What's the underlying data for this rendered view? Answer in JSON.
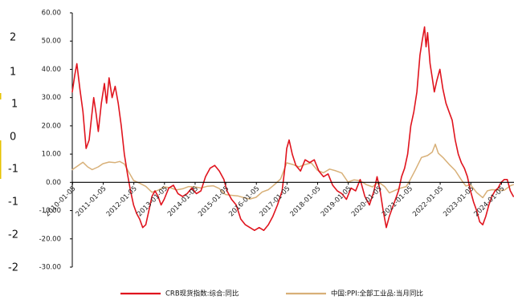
{
  "chart_data": {
    "type": "line",
    "title": "",
    "xlabel": "",
    "ylabel": "",
    "ylim": [
      -30,
      60
    ],
    "yticks": [
      "60.00",
      "50.00",
      "40.00",
      "30.00",
      "20.00",
      "10.00",
      "0.00",
      "-10.00",
      "-20.00",
      "-30.00"
    ],
    "xticks": [
      "2010-01-05",
      "2011-01-05",
      "2012-01-05",
      "2013-01-05",
      "2014-01-05",
      "2015-01-05",
      "2016-01-05",
      "2017-01-05",
      "2018-01-05",
      "2019-01-05",
      "2020-01-05",
      "2021-01-05",
      "2022-01-05",
      "2023-01-05",
      "2024-01-05"
    ],
    "secondary_axis_fragment": [
      "2",
      "1",
      "1",
      "0",
      "-1",
      "-1",
      "-2",
      "-2"
    ],
    "legend_position": "bottom",
    "series": [
      {
        "name": "CRB现货指数:综合:同比",
        "color": "#e0141e",
        "points": [
          [
            2010.0,
            32
          ],
          [
            2010.08,
            38
          ],
          [
            2010.15,
            42
          ],
          [
            2010.25,
            33
          ],
          [
            2010.35,
            25
          ],
          [
            2010.45,
            12
          ],
          [
            2010.55,
            15
          ],
          [
            2010.62,
            22
          ],
          [
            2010.7,
            30
          ],
          [
            2010.78,
            24
          ],
          [
            2010.85,
            18
          ],
          [
            2010.95,
            28
          ],
          [
            2011.05,
            35
          ],
          [
            2011.12,
            28
          ],
          [
            2011.2,
            37
          ],
          [
            2011.3,
            30
          ],
          [
            2011.4,
            34
          ],
          [
            2011.5,
            28
          ],
          [
            2011.6,
            20
          ],
          [
            2011.7,
            10
          ],
          [
            2011.8,
            3
          ],
          [
            2011.9,
            -3
          ],
          [
            2012.0,
            -8
          ],
          [
            2012.1,
            -11
          ],
          [
            2012.2,
            -13
          ],
          [
            2012.3,
            -16
          ],
          [
            2012.4,
            -15
          ],
          [
            2012.5,
            -10
          ],
          [
            2012.6,
            -5
          ],
          [
            2012.7,
            -3
          ],
          [
            2012.8,
            -5
          ],
          [
            2012.9,
            -8
          ],
          [
            2013.0,
            -6
          ],
          [
            2013.15,
            -2
          ],
          [
            2013.3,
            -1
          ],
          [
            2013.45,
            -4
          ],
          [
            2013.6,
            -5
          ],
          [
            2013.75,
            -4
          ],
          [
            2013.9,
            -2
          ],
          [
            2014.05,
            -4
          ],
          [
            2014.2,
            -3
          ],
          [
            2014.35,
            2
          ],
          [
            2014.5,
            5
          ],
          [
            2014.65,
            6
          ],
          [
            2014.8,
            4
          ],
          [
            2014.95,
            1
          ],
          [
            2015.05,
            -3
          ],
          [
            2015.2,
            -6
          ],
          [
            2015.35,
            -8
          ],
          [
            2015.5,
            -13
          ],
          [
            2015.65,
            -15
          ],
          [
            2015.8,
            -16
          ],
          [
            2015.95,
            -17
          ],
          [
            2016.1,
            -16
          ],
          [
            2016.25,
            -17
          ],
          [
            2016.4,
            -15
          ],
          [
            2016.55,
            -12
          ],
          [
            2016.7,
            -8
          ],
          [
            2016.85,
            -3
          ],
          [
            2016.95,
            6
          ],
          [
            2017.0,
            12
          ],
          [
            2017.08,
            15
          ],
          [
            2017.18,
            10
          ],
          [
            2017.3,
            6
          ],
          [
            2017.45,
            4
          ],
          [
            2017.6,
            8
          ],
          [
            2017.75,
            7
          ],
          [
            2017.9,
            8
          ],
          [
            2018.05,
            4
          ],
          [
            2018.2,
            2
          ],
          [
            2018.35,
            3
          ],
          [
            2018.5,
            -1
          ],
          [
            2018.65,
            -3
          ],
          [
            2018.8,
            -4
          ],
          [
            2018.95,
            -6
          ],
          [
            2019.1,
            -2
          ],
          [
            2019.25,
            -3
          ],
          [
            2019.4,
            1
          ],
          [
            2019.55,
            -5
          ],
          [
            2019.7,
            -8
          ],
          [
            2019.85,
            -3
          ],
          [
            2019.95,
            2
          ],
          [
            2020.05,
            -3
          ],
          [
            2020.15,
            -10
          ],
          [
            2020.25,
            -16
          ],
          [
            2020.35,
            -12
          ],
          [
            2020.45,
            -9
          ],
          [
            2020.55,
            -6
          ],
          [
            2020.65,
            -3
          ],
          [
            2020.75,
            2
          ],
          [
            2020.85,
            5
          ],
          [
            2020.95,
            10
          ],
          [
            2021.05,
            20
          ],
          [
            2021.15,
            25
          ],
          [
            2021.25,
            32
          ],
          [
            2021.35,
            45
          ],
          [
            2021.42,
            50
          ],
          [
            2021.5,
            55
          ],
          [
            2021.55,
            48
          ],
          [
            2021.6,
            53
          ],
          [
            2021.68,
            42
          ],
          [
            2021.75,
            37
          ],
          [
            2021.82,
            32
          ],
          [
            2021.9,
            36
          ],
          [
            2022.0,
            40
          ],
          [
            2022.1,
            33
          ],
          [
            2022.2,
            28
          ],
          [
            2022.3,
            25
          ],
          [
            2022.4,
            22
          ],
          [
            2022.5,
            15
          ],
          [
            2022.6,
            10
          ],
          [
            2022.7,
            7
          ],
          [
            2022.8,
            5
          ],
          [
            2022.9,
            2
          ],
          [
            2023.0,
            -3
          ],
          [
            2023.1,
            -7
          ],
          [
            2023.2,
            -10
          ],
          [
            2023.3,
            -14
          ],
          [
            2023.4,
            -15
          ],
          [
            2023.5,
            -12
          ],
          [
            2023.6,
            -8
          ],
          [
            2023.7,
            -5
          ],
          [
            2023.8,
            -3
          ],
          [
            2023.9,
            -2
          ],
          [
            2024.0,
            0
          ],
          [
            2024.1,
            1
          ],
          [
            2024.2,
            1
          ],
          [
            2024.3,
            -3
          ],
          [
            2024.4,
            -5
          ]
        ]
      },
      {
        "name": "中国:PPI:全部工业品:当月同比",
        "color": "#d8b078",
        "points": [
          [
            2010.0,
            4.5
          ],
          [
            2010.2,
            6.0
          ],
          [
            2010.35,
            7.1
          ],
          [
            2010.5,
            5.5
          ],
          [
            2010.65,
            4.5
          ],
          [
            2010.85,
            5.5
          ],
          [
            2011.0,
            6.6
          ],
          [
            2011.2,
            7.2
          ],
          [
            2011.4,
            7.0
          ],
          [
            2011.55,
            7.4
          ],
          [
            2011.7,
            6.5
          ],
          [
            2011.85,
            3.5
          ],
          [
            2012.0,
            0.7
          ],
          [
            2012.2,
            -0.3
          ],
          [
            2012.4,
            -1.4
          ],
          [
            2012.6,
            -3.5
          ],
          [
            2012.8,
            -2.8
          ],
          [
            2013.0,
            -1.6
          ],
          [
            2013.2,
            -1.9
          ],
          [
            2013.4,
            -2.7
          ],
          [
            2013.6,
            -2.3
          ],
          [
            2013.8,
            -1.5
          ],
          [
            2014.0,
            -1.6
          ],
          [
            2014.2,
            -2.0
          ],
          [
            2014.4,
            -1.4
          ],
          [
            2014.6,
            -1.2
          ],
          [
            2014.8,
            -2.2
          ],
          [
            2015.0,
            -4.3
          ],
          [
            2015.2,
            -4.6
          ],
          [
            2015.4,
            -4.8
          ],
          [
            2015.6,
            -5.4
          ],
          [
            2015.8,
            -5.9
          ],
          [
            2016.0,
            -5.3
          ],
          [
            2016.2,
            -3.4
          ],
          [
            2016.4,
            -2.6
          ],
          [
            2016.6,
            -0.8
          ],
          [
            2016.8,
            1.2
          ],
          [
            2017.0,
            6.9
          ],
          [
            2017.2,
            6.3
          ],
          [
            2017.4,
            5.5
          ],
          [
            2017.6,
            6.3
          ],
          [
            2017.8,
            6.9
          ],
          [
            2018.0,
            4.3
          ],
          [
            2018.2,
            3.4
          ],
          [
            2018.4,
            4.7
          ],
          [
            2018.6,
            4.1
          ],
          [
            2018.8,
            3.3
          ],
          [
            2019.0,
            0.1
          ],
          [
            2019.2,
            0.9
          ],
          [
            2019.4,
            0.6
          ],
          [
            2019.6,
            -0.8
          ],
          [
            2019.8,
            -1.6
          ],
          [
            2020.0,
            0.1
          ],
          [
            2020.2,
            -1.5
          ],
          [
            2020.35,
            -3.7
          ],
          [
            2020.5,
            -3.0
          ],
          [
            2020.7,
            -2.1
          ],
          [
            2020.9,
            -1.5
          ],
          [
            2021.0,
            0.3
          ],
          [
            2021.2,
            4.4
          ],
          [
            2021.4,
            8.8
          ],
          [
            2021.6,
            9.5
          ],
          [
            2021.75,
            10.7
          ],
          [
            2021.85,
            13.5
          ],
          [
            2021.95,
            10.3
          ],
          [
            2022.1,
            8.8
          ],
          [
            2022.3,
            6.4
          ],
          [
            2022.5,
            4.2
          ],
          [
            2022.7,
            0.9
          ],
          [
            2022.85,
            -1.3
          ],
          [
            2023.0,
            -0.8
          ],
          [
            2023.2,
            -3.6
          ],
          [
            2023.4,
            -5.4
          ],
          [
            2023.55,
            -3.0
          ],
          [
            2023.7,
            -2.6
          ],
          [
            2023.9,
            -2.7
          ],
          [
            2024.1,
            -2.8
          ],
          [
            2024.3,
            -1.2
          ],
          [
            2024.4,
            -0.8
          ]
        ]
      }
    ]
  }
}
